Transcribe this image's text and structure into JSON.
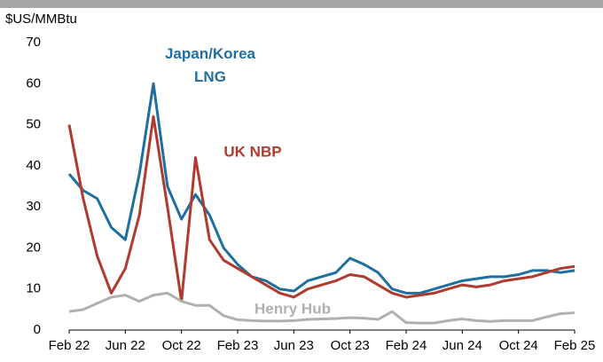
{
  "chart_data": {
    "type": "line",
    "y_axis_label": "$US/MMBtu",
    "x": [
      "2022-02",
      "2022-03",
      "2022-04",
      "2022-05",
      "2022-06",
      "2022-07",
      "2022-08",
      "2022-09",
      "2022-10",
      "2022-11",
      "2022-12",
      "2023-01",
      "2023-02",
      "2023-03",
      "2023-04",
      "2023-05",
      "2023-06",
      "2023-07",
      "2023-08",
      "2023-09",
      "2023-10",
      "2023-11",
      "2023-12",
      "2024-01",
      "2024-02",
      "2024-03",
      "2024-04",
      "2024-05",
      "2024-06",
      "2024-07",
      "2024-08",
      "2024-09",
      "2024-10",
      "2024-11",
      "2024-12",
      "2025-01",
      "2025-02"
    ],
    "series": [
      {
        "name": "Japan/Korea LNG",
        "color": "#1f6fa0",
        "values": [
          38,
          34,
          32,
          25,
          22,
          38,
          60,
          35,
          27,
          33,
          28,
          20,
          16,
          13,
          12,
          10,
          9.5,
          12,
          13,
          14,
          17.5,
          16,
          14,
          10,
          9,
          9,
          10,
          11,
          12,
          12.5,
          13,
          13,
          13.5,
          14.5,
          14.5,
          14,
          14.5
        ]
      },
      {
        "name": "UK NBP",
        "color": "#b03a2e",
        "values": [
          50,
          32,
          18,
          9,
          15,
          28,
          52,
          30,
          7,
          42,
          22,
          17,
          15,
          13,
          11,
          9,
          8,
          10,
          11,
          12,
          13.5,
          13,
          11,
          9,
          8,
          8.5,
          9,
          10,
          11,
          10.5,
          11,
          12,
          12.5,
          13,
          14,
          15,
          15.5
        ]
      },
      {
        "name": "Henry Hub",
        "color": "#b0b0b0",
        "values": [
          4.5,
          5,
          6.5,
          8,
          8.5,
          7,
          8.5,
          9,
          7,
          6,
          6,
          3.5,
          2.5,
          2.3,
          2.2,
          2.2,
          2.3,
          2.6,
          2.7,
          2.8,
          3,
          2.9,
          2.6,
          4.5,
          1.8,
          1.7,
          1.7,
          2.3,
          2.7,
          2.3,
          2.1,
          2.3,
          2.3,
          2.3,
          3.2,
          4,
          4.2
        ]
      }
    ],
    "xlim": [
      "2022-02",
      "2025-02"
    ],
    "xticks": [
      {
        "value": "2022-02",
        "label": "Feb 22"
      },
      {
        "value": "2022-06",
        "label": "Jun 22"
      },
      {
        "value": "2022-10",
        "label": "Oct 22"
      },
      {
        "value": "2023-02",
        "label": "Feb 23"
      },
      {
        "value": "2023-06",
        "label": "Jun 23"
      },
      {
        "value": "2023-10",
        "label": "Oct 23"
      },
      {
        "value": "2024-02",
        "label": "Feb 24"
      },
      {
        "value": "2024-06",
        "label": "Jun 24"
      },
      {
        "value": "2024-10",
        "label": "Oct 24"
      },
      {
        "value": "2025-02",
        "label": "Feb 25"
      }
    ],
    "ylim": [
      0,
      70
    ],
    "yticks": [
      0,
      10,
      20,
      30,
      40,
      50,
      60,
      70
    ],
    "grid": false
  }
}
